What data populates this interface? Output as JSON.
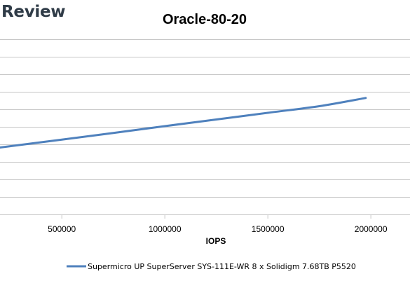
{
  "brand": {
    "text": "Review"
  },
  "chart_data": {
    "type": "line",
    "title": "Oracle-80-20",
    "xlabel": "IOPS",
    "ylabel": "",
    "xlim": [
      200000,
      2190000
    ],
    "x_ticks": [
      500000,
      1000000,
      1500000,
      2000000
    ],
    "grid": "horizontal",
    "grid_line_count": 11,
    "legend_position": "bottom",
    "colors": {
      "series": "#4f81bd",
      "grid": "#c6c6c6"
    },
    "series": [
      {
        "name": "Supermicro UP SuperServer SYS-111E-WR 8 x Solidigm 7.68TB P5520",
        "points": [
          [
            200000,
            0.618
          ],
          [
            500000,
            0.573
          ],
          [
            750000,
            0.535
          ],
          [
            1000000,
            0.496
          ],
          [
            1250000,
            0.458
          ],
          [
            1500000,
            0.42
          ],
          [
            1750000,
            0.382
          ],
          [
            1975000,
            0.335
          ]
        ]
      }
    ]
  }
}
